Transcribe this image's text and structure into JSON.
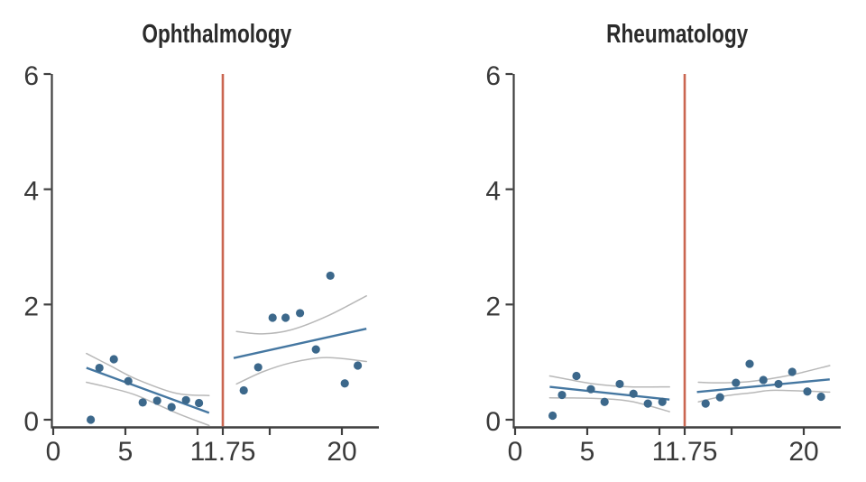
{
  "colors": {
    "point": "#3c688b",
    "fit_line": "#4577a1",
    "confidence_band": "#b8b8b8",
    "cutoff_line": "#ca6651",
    "axis": "#3f3f3f",
    "tick_text": "#3a3a3a",
    "title_text": "#2b2b2b",
    "background": "#ffffff"
  },
  "chart_data": [
    {
      "type": "scatter",
      "title": "Ophthalmology",
      "xlabel": "",
      "ylabel": "",
      "xlim": [
        0,
        22.5
      ],
      "ylim": [
        0,
        6
      ],
      "grid": false,
      "legend": "none",
      "cutoff_x": 11.75,
      "y_ticks": [
        {
          "v": 0,
          "label": "0"
        },
        {
          "v": 2,
          "label": "2"
        },
        {
          "v": 4,
          "label": "4"
        },
        {
          "v": 6,
          "label": "6"
        }
      ],
      "x_ticks": [
        {
          "v": 0,
          "label": "0"
        },
        {
          "v": 5,
          "label": "5"
        },
        {
          "v": 10,
          "label": ""
        },
        {
          "v": 11.75,
          "label": "11.75"
        },
        {
          "v": 15,
          "label": ""
        },
        {
          "v": 20,
          "label": "20"
        }
      ],
      "segments": [
        {
          "name": "before-cutoff",
          "points": [
            [
              2.6,
              0.0
            ],
            [
              3.2,
              0.9
            ],
            [
              4.2,
              1.05
            ],
            [
              5.2,
              0.67
            ],
            [
              6.2,
              0.3
            ],
            [
              7.2,
              0.33
            ],
            [
              8.2,
              0.22
            ],
            [
              9.2,
              0.34
            ],
            [
              10.1,
              0.29
            ]
          ],
          "fit": [
            [
              2.3,
              0.9
            ],
            [
              10.8,
              0.12
            ]
          ],
          "band_upper": [
            [
              2.3,
              1.15
            ],
            [
              4.0,
              0.93
            ],
            [
              5.8,
              0.7
            ],
            [
              8.5,
              0.46
            ],
            [
              10.8,
              0.42
            ]
          ],
          "band_lower": [
            [
              2.3,
              0.65
            ],
            [
              4.0,
              0.55
            ],
            [
              5.8,
              0.42
            ],
            [
              8.5,
              0.12
            ],
            [
              10.8,
              -0.1
            ]
          ]
        },
        {
          "name": "after-cutoff",
          "points": [
            [
              13.2,
              0.51
            ],
            [
              14.2,
              0.91
            ],
            [
              15.2,
              1.77
            ],
            [
              16.1,
              1.77
            ],
            [
              17.1,
              1.85
            ],
            [
              18.2,
              1.22
            ],
            [
              19.2,
              2.5
            ],
            [
              20.2,
              0.63
            ],
            [
              21.1,
              0.94
            ]
          ],
          "fit": [
            [
              12.5,
              1.07
            ],
            [
              21.7,
              1.58
            ]
          ],
          "band_upper": [
            [
              12.7,
              1.53
            ],
            [
              14.5,
              1.49
            ],
            [
              16.5,
              1.56
            ],
            [
              19.0,
              1.8
            ],
            [
              21.7,
              2.15
            ]
          ],
          "band_lower": [
            [
              12.7,
              0.62
            ],
            [
              14.5,
              0.83
            ],
            [
              16.5,
              0.99
            ],
            [
              18.9,
              1.08
            ],
            [
              21.7,
              1.01
            ]
          ]
        }
      ]
    },
    {
      "type": "scatter",
      "title": "Rheumatology",
      "xlabel": "",
      "ylabel": "",
      "xlim": [
        0,
        22.5
      ],
      "ylim": [
        0,
        6
      ],
      "grid": false,
      "legend": "none",
      "cutoff_x": 11.75,
      "y_ticks": [
        {
          "v": 0,
          "label": "0"
        },
        {
          "v": 2,
          "label": "2"
        },
        {
          "v": 4,
          "label": "4"
        },
        {
          "v": 6,
          "label": "6"
        }
      ],
      "x_ticks": [
        {
          "v": 0,
          "label": "0"
        },
        {
          "v": 5,
          "label": "5"
        },
        {
          "v": 10,
          "label": ""
        },
        {
          "v": 11.75,
          "label": "11.75"
        },
        {
          "v": 15,
          "label": ""
        },
        {
          "v": 20,
          "label": "20"
        }
      ],
      "segments": [
        {
          "name": "before-cutoff",
          "points": [
            [
              2.6,
              0.07
            ],
            [
              3.25,
              0.43
            ],
            [
              4.25,
              0.76
            ],
            [
              5.25,
              0.53
            ],
            [
              6.2,
              0.31
            ],
            [
              7.25,
              0.62
            ],
            [
              8.2,
              0.45
            ],
            [
              9.2,
              0.28
            ],
            [
              10.2,
              0.31
            ]
          ],
          "fit": [
            [
              2.4,
              0.57
            ],
            [
              10.7,
              0.35
            ]
          ],
          "band_upper": [
            [
              2.4,
              0.76
            ],
            [
              5.5,
              0.62
            ],
            [
              8.0,
              0.57
            ],
            [
              10.7,
              0.57
            ]
          ],
          "band_lower": [
            [
              2.4,
              0.38
            ],
            [
              5.5,
              0.37
            ],
            [
              8.0,
              0.32
            ],
            [
              10.7,
              0.14
            ]
          ]
        },
        {
          "name": "after-cutoff",
          "points": [
            [
              13.2,
              0.28
            ],
            [
              14.2,
              0.39
            ],
            [
              15.3,
              0.64
            ],
            [
              16.25,
              0.97
            ],
            [
              17.2,
              0.69
            ],
            [
              18.25,
              0.62
            ],
            [
              19.2,
              0.83
            ],
            [
              20.25,
              0.49
            ],
            [
              21.2,
              0.4
            ]
          ],
          "fit": [
            [
              12.6,
              0.48
            ],
            [
              21.8,
              0.7
            ]
          ],
          "band_upper": [
            [
              12.7,
              0.65
            ],
            [
              14.5,
              0.64
            ],
            [
              16.5,
              0.67
            ],
            [
              19.0,
              0.77
            ],
            [
              21.8,
              0.94
            ]
          ],
          "band_lower": [
            [
              12.7,
              0.31
            ],
            [
              14.5,
              0.41
            ],
            [
              16.5,
              0.47
            ],
            [
              18.0,
              0.51
            ],
            [
              21.8,
              0.48
            ]
          ]
        }
      ]
    }
  ]
}
